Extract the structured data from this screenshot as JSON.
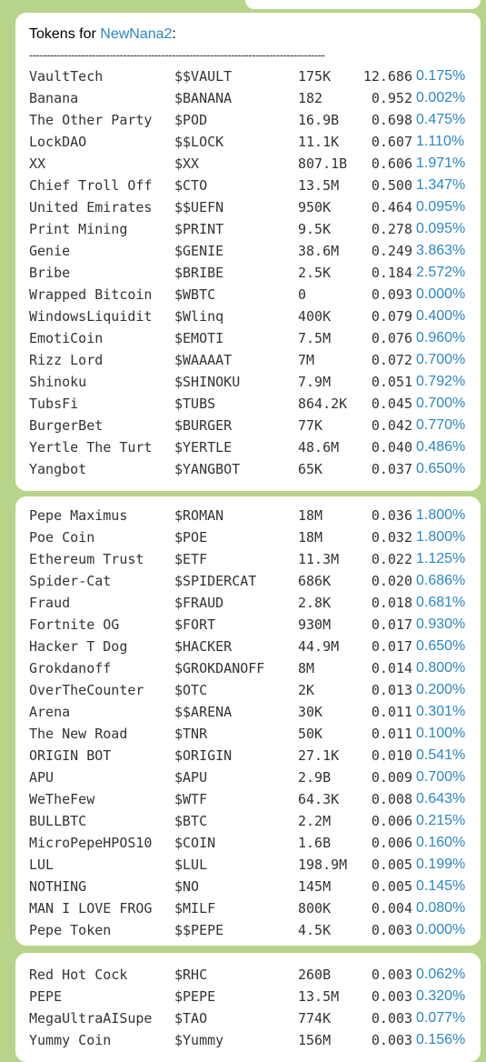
{
  "header": {
    "prefix": "Tokens for ",
    "user": "NewNana2",
    "suffix": ":"
  },
  "divider": "-------------------------------------------------------------------------------------",
  "messages": [
    {
      "rows": [
        {
          "name": "VaultTech",
          "ticker": "$$VAULT",
          "mcap": "175K",
          "price": "12.686",
          "pct": "0.175%"
        },
        {
          "name": "Banana",
          "ticker": "$BANANA",
          "mcap": "182",
          "price": "0.952",
          "pct": "0.002%"
        },
        {
          "name": "The Other Party",
          "ticker": "$POD",
          "mcap": "16.9B",
          "price": "0.698",
          "pct": "0.475%"
        },
        {
          "name": "LockDAO",
          "ticker": "$$LOCK",
          "mcap": "11.1K",
          "price": "0.607",
          "pct": "1.110%"
        },
        {
          "name": "XX",
          "ticker": "$XX",
          "mcap": "807.1B",
          "price": "0.606",
          "pct": "1.971%"
        },
        {
          "name": "Chief Troll Off",
          "ticker": "$CTO",
          "mcap": "13.5M",
          "price": "0.500",
          "pct": "1.347%"
        },
        {
          "name": "United Emirates",
          "ticker": "$$UEFN",
          "mcap": "950K",
          "price": "0.464",
          "pct": "0.095%"
        },
        {
          "name": "Print Mining",
          "ticker": "$PRINT",
          "mcap": "9.5K",
          "price": "0.278",
          "pct": "0.095%"
        },
        {
          "name": "Genie",
          "ticker": "$GENIE",
          "mcap": "38.6M",
          "price": "0.249",
          "pct": "3.863%"
        },
        {
          "name": "Bribe",
          "ticker": "$BRIBE",
          "mcap": "2.5K",
          "price": "0.184",
          "pct": "2.572%"
        },
        {
          "name": "Wrapped Bitcoin",
          "ticker": "$WBTC",
          "mcap": "0",
          "price": "0.093",
          "pct": "0.000%"
        },
        {
          "name": "WindowsLiquidit",
          "ticker": "$Wlinq",
          "mcap": "400K",
          "price": "0.079",
          "pct": "0.400%"
        },
        {
          "name": "EmotiCoin",
          "ticker": "$EMOTI",
          "mcap": "7.5M",
          "price": "0.076",
          "pct": "0.960%"
        },
        {
          "name": "Rizz Lord",
          "ticker": "$WAAAAT",
          "mcap": "7M",
          "price": "0.072",
          "pct": "0.700%"
        },
        {
          "name": "Shinoku",
          "ticker": "$SHINOKU",
          "mcap": "7.9M",
          "price": "0.051",
          "pct": "0.792%"
        },
        {
          "name": "TubsFi",
          "ticker": "$TUBS",
          "mcap": "864.2K",
          "price": "0.045",
          "pct": "0.700%"
        },
        {
          "name": "BurgerBet",
          "ticker": "$BURGER",
          "mcap": "77K",
          "price": "0.042",
          "pct": "0.770%"
        },
        {
          "name": "Yertle The Turt",
          "ticker": "$YERTLE",
          "mcap": "48.6M",
          "price": "0.040",
          "pct": "0.486%"
        },
        {
          "name": "Yangbot",
          "ticker": "$YANGBOT",
          "mcap": "65K",
          "price": "0.037",
          "pct": "0.650%"
        }
      ]
    },
    {
      "rows": [
        {
          "name": "Pepe Maximus",
          "ticker": "$ROMAN",
          "mcap": "18M",
          "price": "0.036",
          "pct": "1.800%"
        },
        {
          "name": "Poe Coin",
          "ticker": "$POE",
          "mcap": "18M",
          "price": "0.032",
          "pct": "1.800%"
        },
        {
          "name": "Ethereum Trust",
          "ticker": "$ETF",
          "mcap": "11.3M",
          "price": "0.022",
          "pct": "1.125%"
        },
        {
          "name": "Spider-Cat",
          "ticker": "$SPIDERCAT",
          "mcap": "686K",
          "price": "0.020",
          "pct": "0.686%"
        },
        {
          "name": "Fraud",
          "ticker": "$FRAUD",
          "mcap": "2.8K",
          "price": "0.018",
          "pct": "0.681%"
        },
        {
          "name": "Fortnite OG",
          "ticker": "$FORT",
          "mcap": "930M",
          "price": "0.017",
          "pct": "0.930%"
        },
        {
          "name": "Hacker T Dog",
          "ticker": "$HACKER",
          "mcap": "44.9M",
          "price": "0.017",
          "pct": "0.650%"
        },
        {
          "name": "Grokdanoff",
          "ticker": "$GROKDANOFF",
          "mcap": "8M",
          "price": "0.014",
          "pct": "0.800%"
        },
        {
          "name": "OverTheCounter",
          "ticker": "$OTC",
          "mcap": "2K",
          "price": "0.013",
          "pct": "0.200%"
        },
        {
          "name": "Arena",
          "ticker": "$$ARENA",
          "mcap": "30K",
          "price": "0.011",
          "pct": "0.301%"
        },
        {
          "name": "The New Road",
          "ticker": "$TNR",
          "mcap": "50K",
          "price": "0.011",
          "pct": "0.100%"
        },
        {
          "name": "ORIGIN BOT",
          "ticker": "$ORIGIN",
          "mcap": "27.1K",
          "price": "0.010",
          "pct": "0.541%"
        },
        {
          "name": "APU",
          "ticker": "$APU",
          "mcap": "2.9B",
          "price": "0.009",
          "pct": "0.700%"
        },
        {
          "name": "WeTheFew",
          "ticker": "$WTF",
          "mcap": "64.3K",
          "price": "0.008",
          "pct": "0.643%"
        },
        {
          "name": "BULLBTC",
          "ticker": "$BTC",
          "mcap": "2.2M",
          "price": "0.006",
          "pct": "0.215%"
        },
        {
          "name": "MicroPepeHPOS10",
          "ticker": "$COIN",
          "mcap": "1.6B",
          "price": "0.006",
          "pct": "0.160%"
        },
        {
          "name": "LUL",
          "ticker": "$LUL",
          "mcap": "198.9M",
          "price": "0.005",
          "pct": "0.199%"
        },
        {
          "name": "NOTHING",
          "ticker": "$NO",
          "mcap": "145M",
          "price": "0.005",
          "pct": "0.145%"
        },
        {
          "name": "MAN I LOVE FROG",
          "ticker": "$MILF",
          "mcap": "800K",
          "price": "0.004",
          "pct": "0.080%"
        },
        {
          "name": "Pepe Token",
          "ticker": "$$PEPE",
          "mcap": "4.5K",
          "price": "0.003",
          "pct": "0.000%"
        }
      ]
    },
    {
      "rows": [
        {
          "name": "Red Hot Cock",
          "ticker": "$RHC",
          "mcap": "260B",
          "price": "0.003",
          "pct": "0.062%"
        },
        {
          "name": "PEPE",
          "ticker": "$PEPE",
          "mcap": "13.5M",
          "price": "0.003",
          "pct": "0.320%"
        },
        {
          "name": "MegaUltraAISupe",
          "ticker": "$TAO",
          "mcap": "774K",
          "price": "0.003",
          "pct": "0.077%"
        },
        {
          "name": "Yummy Coin",
          "ticker": "$Yummy",
          "mcap": "156M",
          "price": "0.003",
          "pct": "0.156%"
        }
      ]
    }
  ]
}
